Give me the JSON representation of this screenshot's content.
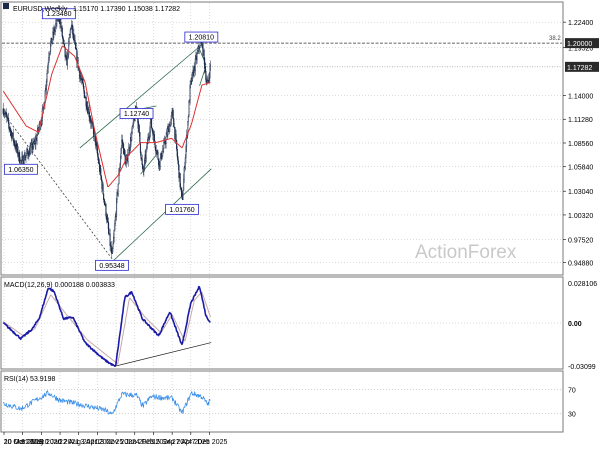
{
  "header": {
    "symbol": "EURUSD,Weekly",
    "ohlc": "1.15170 1.17390 1.15038 1.17282"
  },
  "watermark": "ActionForex",
  "colors": {
    "bullish": "#1a2a4a",
    "ma": "#e03030",
    "macd": "#1a1aa8",
    "signal": "#c8a8a8",
    "rsi": "#3a8ee8",
    "trend": "#2a6a4a",
    "grid": "#b8b8b8",
    "label_box": "#2a2ad0"
  },
  "chart_data": [
    {
      "type": "candlestick",
      "title": "EURUSD,Weekly",
      "ylim": [
        0.9344,
        1.2471
      ],
      "y_ticks": [
        "1.22400",
        "1.19520",
        "1.17282",
        "1.14000",
        "1.11280",
        "1.08560",
        "1.05840",
        "1.03040",
        "1.00320",
        "0.97520",
        "0.94880"
      ],
      "y_tick_values": [
        1.224,
        1.1952,
        1.17282,
        1.14,
        1.1128,
        1.0856,
        1.0584,
        1.0304,
        1.0032,
        0.9752,
        0.9488
      ],
      "x_ticks": [
        "10 Mar 2019",
        "20 Oct 2019",
        "31 May 2020",
        "10 Jan 2021",
        "22 Aug 2021",
        "3 Apr 2022",
        "13 Nov 2022",
        "25 Jun 2023",
        "4 Feb 2024",
        "15 Sep 2024",
        "27 Apr 2025",
        "7 Dec 2025"
      ],
      "x_dates": [
        "2019-03-10",
        "2019-10-20",
        "2020-05-31",
        "2021-01-10",
        "2021-08-22",
        "2022-04-03",
        "2022-11-13",
        "2023-06-25",
        "2024-02-04",
        "2024-09-15",
        "2025-04-27",
        "2025-12-07"
      ],
      "last_price": "1.17282",
      "level_label": "1.20000",
      "level_value": 1.2,
      "fib_label": "38.2",
      "price_labels": [
        {
          "text": "1.23480",
          "date": "2020-12-27",
          "value": 1.2348
        },
        {
          "text": "1.06350",
          "date": "2019-09-29",
          "value": 1.0635
        },
        {
          "text": "0.95348",
          "date": "2022-09-25",
          "value": 0.95348
        },
        {
          "text": "1.12740",
          "date": "2023-07-16",
          "value": 1.1274
        },
        {
          "text": "1.01760",
          "date": "2025-01-12",
          "value": 1.0176
        },
        {
          "text": "1.20810",
          "date": "2025-08-31",
          "value": 1.2081
        }
      ],
      "series": [
        {
          "name": "EURUSD",
          "anchors": [
            {
              "date": "2019-03-01",
              "value": 1.125
            },
            {
              "date": "2019-09-29",
              "value": 1.0635
            },
            {
              "date": "2020-03-15",
              "value": 1.085
            },
            {
              "date": "2020-06-28",
              "value": 1.125
            },
            {
              "date": "2020-08-30",
              "value": 1.19
            },
            {
              "date": "2020-12-27",
              "value": 1.2348
            },
            {
              "date": "2021-03-28",
              "value": 1.175
            },
            {
              "date": "2021-05-23",
              "value": 1.222
            },
            {
              "date": "2021-08-22",
              "value": 1.17
            },
            {
              "date": "2022-03-06",
              "value": 1.09
            },
            {
              "date": "2022-07-10",
              "value": 1.01
            },
            {
              "date": "2022-09-25",
              "value": 0.95348
            },
            {
              "date": "2023-01-22",
              "value": 1.09
            },
            {
              "date": "2023-03-12",
              "value": 1.06
            },
            {
              "date": "2023-07-16",
              "value": 1.1274
            },
            {
              "date": "2023-10-01",
              "value": 1.049
            },
            {
              "date": "2023-12-31",
              "value": 1.11
            },
            {
              "date": "2024-04-14",
              "value": 1.062
            },
            {
              "date": "2024-09-22",
              "value": 1.12
            },
            {
              "date": "2025-01-12",
              "value": 1.0176
            },
            {
              "date": "2025-04-20",
              "value": 1.15
            },
            {
              "date": "2025-08-31",
              "value": 1.2081
            },
            {
              "date": "2025-11-09",
              "value": 1.15
            },
            {
              "date": "2025-12-21",
              "value": 1.176
            }
          ]
        },
        {
          "name": "MA",
          "anchors": [
            {
              "date": "2019-03-01",
              "value": 1.145
            },
            {
              "date": "2019-12-01",
              "value": 1.105
            },
            {
              "date": "2020-04-26",
              "value": 1.098
            },
            {
              "date": "2020-10-04",
              "value": 1.165
            },
            {
              "date": "2021-02-07",
              "value": 1.197
            },
            {
              "date": "2021-07-04",
              "value": 1.185
            },
            {
              "date": "2021-11-07",
              "value": 1.155
            },
            {
              "date": "2022-03-06",
              "value": 1.098
            },
            {
              "date": "2022-08-07",
              "value": 1.035
            },
            {
              "date": "2022-12-11",
              "value": 1.049
            },
            {
              "date": "2023-04-02",
              "value": 1.071
            },
            {
              "date": "2023-09-03",
              "value": 1.086
            },
            {
              "date": "2024-03-03",
              "value": 1.086
            },
            {
              "date": "2024-09-08",
              "value": 1.091
            },
            {
              "date": "2025-01-12",
              "value": 1.08
            },
            {
              "date": "2025-05-04",
              "value": 1.107
            },
            {
              "date": "2025-09-07",
              "value": 1.152
            },
            {
              "date": "2025-12-21",
              "value": 1.155
            }
          ]
        }
      ],
      "trendlines": [
        {
          "from": {
            "date": "2019-03-01",
            "value": 1.12
          },
          "to": {
            "date": "2022-09-25",
            "value": 0.953
          }
        },
        {
          "from": {
            "date": "2021-09-05",
            "value": 1.08
          },
          "to": {
            "date": "2025-09-28",
            "value": 1.2
          }
        },
        {
          "from": {
            "date": "2022-10-02",
            "value": 0.95
          },
          "to": {
            "date": "2025-12-28",
            "value": 1.056
          }
        },
        {
          "from": {
            "date": "2023-09-03",
            "value": 1.1245
          },
          "to": {
            "date": "2024-03-10",
            "value": 1.128
          }
        },
        {
          "from": {
            "date": "2023-09-03",
            "value": 1.05
          },
          "to": {
            "date": "2024-03-10",
            "value": 1.072
          }
        },
        {
          "from": {
            "date": "2025-08-10",
            "value": 1.151
          },
          "to": {
            "date": "2025-10-26",
            "value": 1.174
          }
        },
        {
          "from": {
            "date": "2025-08-10",
            "value": 1.193
          },
          "to": {
            "date": "2025-10-26",
            "value": 1.175
          }
        }
      ]
    },
    {
      "type": "line",
      "title": "MACD(12,26,9) 0.000188 0.003833",
      "ylim": [
        -0.0325,
        0.0325
      ],
      "y_ticks": [
        "0.028106",
        "0.00",
        "-0.03099"
      ],
      "y_tick_values": [
        0.028106,
        0,
        -0.03099
      ],
      "series": [
        {
          "name": "MACD",
          "anchors": [
            {
              "date": "2019-03-01",
              "value": 0.0
            },
            {
              "date": "2019-09-29",
              "value": -0.011
            },
            {
              "date": "2020-02-16",
              "value": -0.004
            },
            {
              "date": "2020-05-10",
              "value": 0.004
            },
            {
              "date": "2020-08-23",
              "value": 0.025
            },
            {
              "date": "2020-11-01",
              "value": 0.022
            },
            {
              "date": "2021-02-21",
              "value": 0.003
            },
            {
              "date": "2021-06-13",
              "value": 0.004
            },
            {
              "date": "2021-11-07",
              "value": -0.014
            },
            {
              "date": "2022-06-26",
              "value": -0.026
            },
            {
              "date": "2022-11-06",
              "value": -0.031
            },
            {
              "date": "2023-02-26",
              "value": 0.018
            },
            {
              "date": "2023-05-21",
              "value": 0.022
            },
            {
              "date": "2023-09-24",
              "value": 0.003
            },
            {
              "date": "2024-04-07",
              "value": -0.009
            },
            {
              "date": "2024-08-18",
              "value": 0.008
            },
            {
              "date": "2025-01-12",
              "value": -0.016
            },
            {
              "date": "2025-04-27",
              "value": 0.014
            },
            {
              "date": "2025-08-10",
              "value": 0.026
            },
            {
              "date": "2025-10-26",
              "value": 0.005
            },
            {
              "date": "2025-12-21",
              "value": 0.0002
            }
          ]
        },
        {
          "name": "Signal",
          "anchors": [
            {
              "date": "2019-03-01",
              "value": 0.001
            },
            {
              "date": "2019-10-27",
              "value": -0.009
            },
            {
              "date": "2020-03-15",
              "value": -0.004
            },
            {
              "date": "2020-09-20",
              "value": 0.02
            },
            {
              "date": "2021-03-28",
              "value": 0.006
            },
            {
              "date": "2021-12-05",
              "value": -0.012
            },
            {
              "date": "2022-12-04",
              "value": -0.029
            },
            {
              "date": "2023-04-23",
              "value": 0.018
            },
            {
              "date": "2023-10-29",
              "value": 0.004
            },
            {
              "date": "2024-05-05",
              "value": -0.007
            },
            {
              "date": "2024-09-15",
              "value": 0.006
            },
            {
              "date": "2025-02-16",
              "value": -0.013
            },
            {
              "date": "2025-06-08",
              "value": 0.016
            },
            {
              "date": "2025-09-07",
              "value": 0.022
            },
            {
              "date": "2025-12-21",
              "value": 0.0038
            }
          ]
        }
      ],
      "trendlines": [
        {
          "from": {
            "date": "2022-10-30",
            "value": -0.0305
          },
          "to": {
            "date": "2025-12-28",
            "value": -0.0138
          }
        }
      ]
    },
    {
      "type": "line",
      "title": "RSI(14) 53.9198",
      "ylim": [
        0,
        100
      ],
      "y_ticks": [
        "70",
        "30"
      ],
      "y_tick_values": [
        70,
        30
      ],
      "series": [
        {
          "name": "RSI",
          "anchors": [
            {
              "date": "2019-03-01",
              "value": 47
            },
            {
              "date": "2019-09-29",
              "value": 38
            },
            {
              "date": "2020-08-23",
              "value": 64
            },
            {
              "date": "2021-01-10",
              "value": 52
            },
            {
              "date": "2021-09-12",
              "value": 45
            },
            {
              "date": "2022-07-03",
              "value": 36
            },
            {
              "date": "2022-09-25",
              "value": 28
            },
            {
              "date": "2023-01-22",
              "value": 62
            },
            {
              "date": "2023-07-16",
              "value": 60
            },
            {
              "date": "2023-10-01",
              "value": 42
            },
            {
              "date": "2024-01-07",
              "value": 58
            },
            {
              "date": "2024-09-22",
              "value": 55
            },
            {
              "date": "2025-01-12",
              "value": 31
            },
            {
              "date": "2025-05-04",
              "value": 64
            },
            {
              "date": "2025-09-07",
              "value": 58
            },
            {
              "date": "2025-11-16",
              "value": 45
            },
            {
              "date": "2025-12-21",
              "value": 53.92
            }
          ]
        }
      ]
    }
  ]
}
